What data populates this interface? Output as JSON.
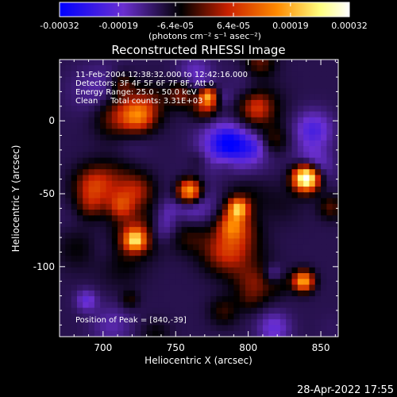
{
  "chart_data": {
    "type": "heatmap",
    "title": "Reconstructed RHESSI Image",
    "xlabel": "Heliocentric X (arcsec)",
    "ylabel": "Heliocentric Y (arcsec)",
    "xlim": [
      670,
      862
    ],
    "ylim": [
      -148,
      42
    ],
    "x_ticks": [
      {
        "value": 700,
        "label": "700"
      },
      {
        "value": 750,
        "label": "750"
      },
      {
        "value": 800,
        "label": "800"
      },
      {
        "value": 850,
        "label": "850"
      }
    ],
    "y_ticks": [
      {
        "value": 0,
        "label": "0"
      },
      {
        "value": -50,
        "label": "-50"
      },
      {
        "value": -100,
        "label": "-100"
      }
    ],
    "colorbar": {
      "range": [
        -0.00032,
        0.00032
      ],
      "tick_labels": [
        "-0.00032",
        "-0.00019",
        "-6.4e-05",
        "6.4e-05",
        "0.00019",
        "0.00032"
      ],
      "units_label": "(photons cm⁻² s⁻¹ asec⁻²)",
      "colors": [
        "#0000ff",
        "#6a2fd0",
        "#000000",
        "#c82000",
        "#ff8a00",
        "#ffff80",
        "#ffffff"
      ]
    },
    "annotations": [
      "11-Feb-2004 12:38:32.000 to 12:42:16.000",
      "Detectors: 3F 4F 5F 6F 7F 8F, Att 0",
      "Energy Range: 25.0 - 50.0 keV",
      "Clean     Total counts: 3.31E+03"
    ],
    "peak_label": "Position of Peak = [840,-39]",
    "peak": [
      840,
      -39
    ],
    "grid": false
  },
  "footer": {
    "timestamp": "28-Apr-2022 17:55"
  }
}
